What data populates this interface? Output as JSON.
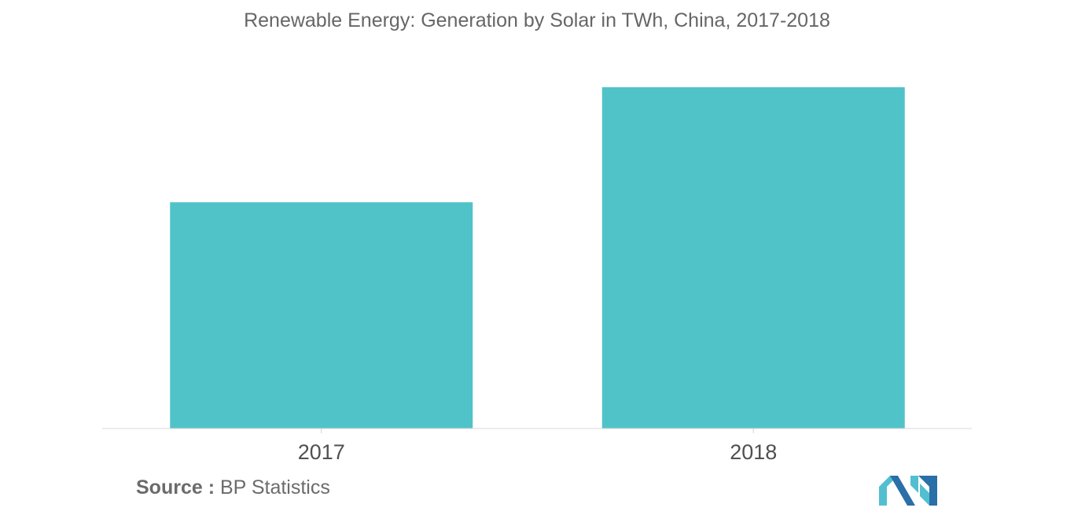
{
  "title": "Renewable Energy: Generation by Solar in TWh, China, 2017-2018",
  "source": {
    "label": "Source :",
    "text": "BP Statistics"
  },
  "colors": {
    "bar": "#50c3c9",
    "logo_dark": "#2a6fa8",
    "logo_light": "#52bfd0"
  },
  "logo_icon": "mordor-intelligence-logo",
  "chart_data": {
    "type": "bar",
    "title": "Renewable Energy: Generation by Solar in TWh, China, 2017-2018",
    "categories": [
      "2017",
      "2018"
    ],
    "values": [
      118,
      178
    ],
    "xlabel": "",
    "ylabel": "",
    "ylim": [
      0,
      180
    ],
    "grid": false,
    "legend": "none"
  }
}
